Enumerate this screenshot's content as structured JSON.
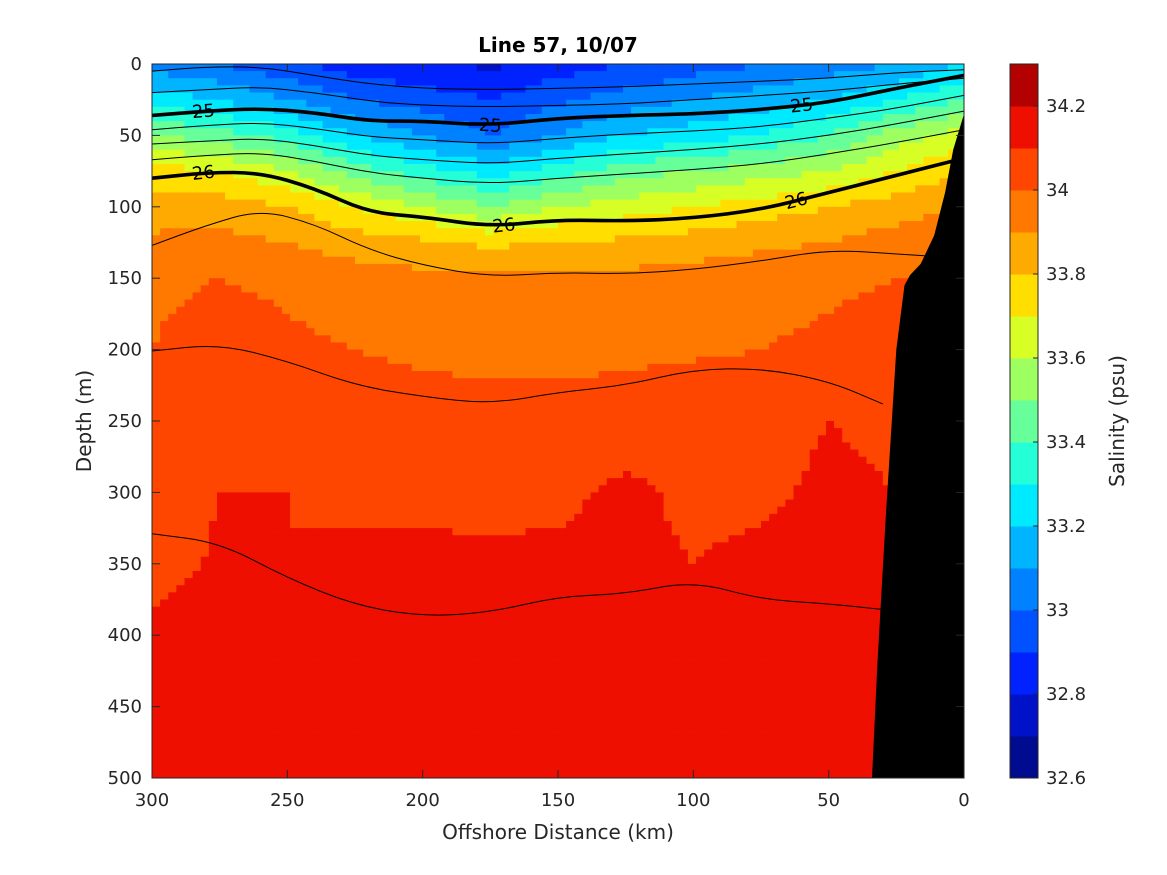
{
  "chart_data": {
    "type": "heatmap",
    "title": "Line 57, 10/07",
    "xlabel": "Offshore Distance (km)",
    "ylabel": "Depth (m)",
    "colorbar_label": "Salinity (psu)",
    "xlim": [
      300,
      0
    ],
    "ylim": [
      0,
      500
    ],
    "x_reversed": true,
    "y_reversed": true,
    "xticks": [
      300,
      250,
      200,
      150,
      100,
      50,
      0
    ],
    "yticks": [
      0,
      50,
      100,
      150,
      200,
      250,
      300,
      350,
      400,
      450,
      500
    ],
    "colorbar_ticks": [
      32.6,
      32.8,
      33,
      33.2,
      33.4,
      33.6,
      33.8,
      34,
      34.2
    ],
    "colorbar_ticks_text": [
      "32.6",
      "32.8",
      "33",
      "33.2",
      "33.4",
      "33.6",
      "33.8",
      "34",
      "34.2"
    ],
    "clim": [
      32.6,
      34.3
    ],
    "colorbar_colors": [
      "#000c8f",
      "#0012c8",
      "#0022ff",
      "#0051ff",
      "#0081ff",
      "#00b4ff",
      "#00eaff",
      "#25ffd8",
      "#66ff99",
      "#9eff60",
      "#d8ff25",
      "#ffde00",
      "#ffaa00",
      "#ff7800",
      "#ff4600",
      "#ee0f00",
      "#b30000"
    ],
    "salinity_field": {
      "x": [
        300,
        275,
        250,
        225,
        200,
        175,
        150,
        125,
        100,
        75,
        50,
        25,
        0
      ],
      "depth": [
        0,
        25,
        50,
        75,
        100,
        125,
        150,
        200,
        250,
        300,
        350,
        400,
        450,
        500
      ],
      "values": [
        [
          33.05,
          33.0,
          32.92,
          32.85,
          32.82,
          32.78,
          32.85,
          32.9,
          32.95,
          33.0,
          33.05,
          33.1,
          33.2
        ],
        [
          33.25,
          33.2,
          33.1,
          33.0,
          32.95,
          32.9,
          32.98,
          33.05,
          33.1,
          33.15,
          33.2,
          33.3,
          33.4
        ],
        [
          33.5,
          33.45,
          33.35,
          33.2,
          33.1,
          33.0,
          33.1,
          33.2,
          33.25,
          33.3,
          33.4,
          33.55,
          33.65
        ],
        [
          33.75,
          33.7,
          33.6,
          33.45,
          33.35,
          33.25,
          33.35,
          33.45,
          33.5,
          33.55,
          33.6,
          33.7,
          33.8
        ],
        [
          33.85,
          33.85,
          33.8,
          33.7,
          33.6,
          33.5,
          33.6,
          33.65,
          33.7,
          33.75,
          33.8,
          33.85,
          33.9
        ],
        [
          33.92,
          33.93,
          33.9,
          33.85,
          33.82,
          33.78,
          33.8,
          33.82,
          33.85,
          33.88,
          33.9,
          33.95,
          34.0
        ],
        [
          33.98,
          34.0,
          33.98,
          33.95,
          33.93,
          33.92,
          33.92,
          33.93,
          33.94,
          33.96,
          33.98,
          34.0,
          34.0
        ],
        [
          34.0,
          34.05,
          34.02,
          34.0,
          33.98,
          33.97,
          33.97,
          33.98,
          33.99,
          34.0,
          34.02,
          34.05,
          34.05
        ],
        [
          34.05,
          34.08,
          34.08,
          34.06,
          34.05,
          34.04,
          34.04,
          34.05,
          34.05,
          34.06,
          34.1,
          34.08,
          34.08
        ],
        [
          34.06,
          34.1,
          34.1,
          34.08,
          34.08,
          34.07,
          34.08,
          34.12,
          34.08,
          34.08,
          34.12,
          34.1,
          34.1
        ],
        [
          34.07,
          34.11,
          34.1,
          34.12,
          34.12,
          34.12,
          34.12,
          34.12,
          34.1,
          34.12,
          34.15,
          34.12,
          34.12
        ],
        [
          34.12,
          34.14,
          34.1,
          34.14,
          34.14,
          34.14,
          34.14,
          34.14,
          34.14,
          34.14,
          34.16,
          34.14,
          34.14
        ],
        [
          34.14,
          34.15,
          34.14,
          34.15,
          34.15,
          34.15,
          34.15,
          34.15,
          34.15,
          34.15,
          34.16,
          34.16,
          34.16
        ],
        [
          34.15,
          34.16,
          34.16,
          34.16,
          34.16,
          34.16,
          34.16,
          34.16,
          34.16,
          34.16,
          34.17,
          34.2,
          34.2
        ]
      ]
    },
    "density_contours": [
      {
        "level": "24.5",
        "bold": false,
        "x": [
          300,
          280,
          260,
          240,
          220,
          200,
          175,
          150,
          125,
          100,
          75,
          50,
          25,
          0
        ],
        "depth": [
          5,
          2,
          2,
          8,
          14,
          17,
          18,
          17,
          16,
          14,
          12,
          10,
          6,
          4
        ]
      },
      {
        "level": "24.75",
        "bold": false,
        "x": [
          300,
          280,
          260,
          240,
          220,
          200,
          175,
          150,
          125,
          100,
          75,
          50,
          25,
          0
        ],
        "depth": [
          20,
          18,
          16,
          20,
          26,
          29,
          30,
          29,
          28,
          25,
          22,
          19,
          14,
          10
        ]
      },
      {
        "level": "25",
        "bold": true,
        "label_x": [
          281,
          175,
          60
        ],
        "x": [
          300,
          280,
          260,
          240,
          220,
          200,
          175,
          150,
          125,
          100,
          75,
          50,
          25,
          0
        ],
        "depth": [
          36,
          33,
          31,
          34,
          40,
          40,
          43,
          38,
          36,
          35,
          32,
          27,
          17,
          8
        ]
      },
      {
        "level": "25.25",
        "bold": false,
        "x": [
          300,
          280,
          260,
          240,
          220,
          200,
          175,
          150,
          125,
          100,
          75,
          50,
          25,
          0
        ],
        "depth": [
          46,
          43,
          41,
          45,
          51,
          53,
          56,
          52,
          49,
          47,
          44,
          38,
          31,
          22
        ]
      },
      {
        "level": "25.5",
        "bold": false,
        "x": [
          300,
          280,
          260,
          240,
          220,
          200,
          175,
          150,
          125,
          100,
          75,
          50,
          25,
          0
        ],
        "depth": [
          56,
          54,
          52,
          57,
          64,
          67,
          70,
          66,
          63,
          60,
          56,
          50,
          42,
          33
        ]
      },
      {
        "level": "25.75",
        "bold": false,
        "x": [
          300,
          280,
          260,
          240,
          220,
          200,
          175,
          150,
          125,
          100,
          75,
          50,
          25,
          0
        ],
        "depth": [
          67,
          64,
          62,
          68,
          76,
          80,
          84,
          80,
          77,
          74,
          70,
          63,
          55,
          46
        ]
      },
      {
        "level": "26",
        "bold": true,
        "label_x": [
          281,
          170,
          62
        ],
        "x": [
          300,
          280,
          260,
          240,
          220,
          200,
          175,
          150,
          125,
          100,
          75,
          50,
          25,
          0
        ],
        "depth": [
          80,
          76,
          76,
          87,
          104,
          107,
          114,
          109,
          110,
          108,
          102,
          90,
          78,
          66
        ]
      },
      {
        "level": "26.25",
        "bold": false,
        "x": [
          300,
          280,
          260,
          240,
          220,
          200,
          175,
          150,
          125,
          100,
          75,
          50,
          25,
          0
        ],
        "depth": [
          127,
          113,
          102,
          112,
          130,
          141,
          149,
          146,
          147,
          144,
          138,
          130,
          133,
          136
        ]
      },
      {
        "level": "26.5",
        "bold": false,
        "x": [
          300,
          275,
          250,
          225,
          200,
          175,
          150,
          125,
          100,
          75,
          50,
          30
        ],
        "depth": [
          201,
          196,
          208,
          225,
          233,
          238,
          230,
          225,
          214,
          213,
          222,
          238
        ]
      },
      {
        "level": "26.75",
        "bold": false,
        "x": [
          300,
          275,
          250,
          225,
          200,
          175,
          150,
          125,
          100,
          75,
          50,
          30
        ],
        "depth": [
          329,
          335,
          360,
          379,
          387,
          384,
          373,
          371,
          362,
          375,
          378,
          382
        ]
      }
    ],
    "bathymetry": {
      "x": [
        34,
        32,
        29,
        25,
        22,
        20,
        16,
        11,
        7,
        4,
        0,
        0
      ],
      "depth": [
        500,
        420,
        320,
        200,
        155,
        148,
        140,
        120,
        90,
        60,
        35,
        500
      ]
    }
  }
}
